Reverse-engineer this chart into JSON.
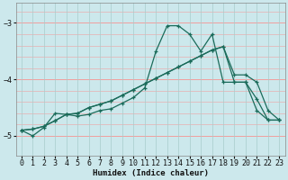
{
  "xlabel": "Humidex (Indice chaleur)",
  "bg_color": "#cce8ec",
  "grid_color_h": "#f0a0a0",
  "grid_color_v": "#a8cccc",
  "line_color": "#1a6b5a",
  "xlim": [
    -0.5,
    23.5
  ],
  "ylim": [
    -5.35,
    -2.65
  ],
  "yticks": [
    -5,
    -4,
    -3
  ],
  "xticks": [
    0,
    1,
    2,
    3,
    4,
    5,
    6,
    7,
    8,
    9,
    10,
    11,
    12,
    13,
    14,
    15,
    16,
    17,
    18,
    19,
    20,
    21,
    22,
    23
  ],
  "series": {
    "line1": {
      "x": [
        0,
        1,
        2,
        3,
        4,
        5,
        6,
        7,
        8,
        9,
        10,
        11,
        12,
        13,
        14,
        15,
        16,
        17,
        18,
        19,
        20,
        21,
        22,
        23
      ],
      "y": [
        -4.9,
        -5.0,
        -4.85,
        -4.6,
        -4.62,
        -4.65,
        -4.62,
        -4.55,
        -4.52,
        -4.42,
        -4.32,
        -4.15,
        -3.5,
        -3.05,
        -3.05,
        -3.2,
        -3.5,
        -3.2,
        -4.05,
        -4.05,
        -4.05,
        -4.55,
        -4.72,
        -4.72
      ]
    },
    "line2": {
      "x": [
        0,
        1,
        2,
        3,
        4,
        5,
        6,
        7,
        8,
        9,
        10,
        11,
        12,
        13,
        14,
        15,
        16,
        17,
        18,
        19,
        20,
        21,
        22,
        23
      ],
      "y": [
        -4.9,
        -4.88,
        -4.83,
        -4.73,
        -4.62,
        -4.6,
        -4.5,
        -4.44,
        -4.38,
        -4.28,
        -4.18,
        -4.08,
        -3.98,
        -3.88,
        -3.78,
        -3.68,
        -3.58,
        -3.48,
        -3.42,
        -3.92,
        -3.92,
        -4.05,
        -4.55,
        -4.72
      ]
    },
    "line3": {
      "x": [
        0,
        1,
        2,
        3,
        4,
        5,
        6,
        7,
        8,
        9,
        10,
        11,
        12,
        13,
        14,
        15,
        16,
        17,
        18,
        19,
        20,
        21,
        22,
        23
      ],
      "y": [
        -4.9,
        -4.88,
        -4.83,
        -4.73,
        -4.62,
        -4.6,
        -4.5,
        -4.44,
        -4.38,
        -4.28,
        -4.18,
        -4.08,
        -3.98,
        -3.88,
        -3.78,
        -3.68,
        -3.58,
        -3.48,
        -3.42,
        -4.05,
        -4.05,
        -4.35,
        -4.72,
        -4.72
      ]
    }
  }
}
